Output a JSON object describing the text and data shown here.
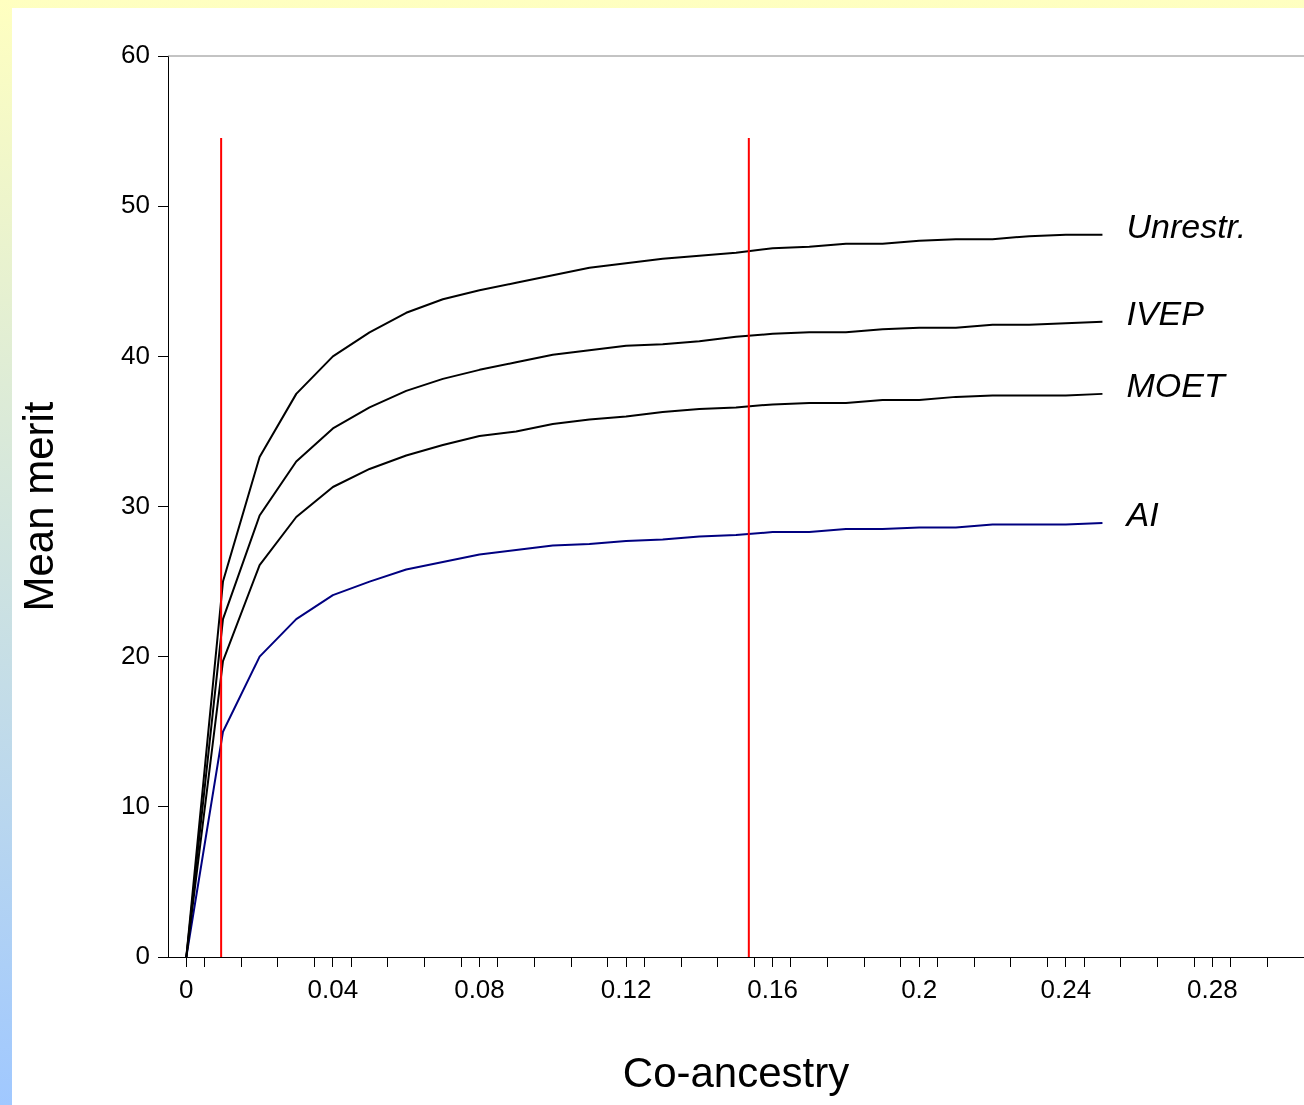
{
  "chart_data": {
    "type": "line",
    "xlabel": "Co-ancestry",
    "ylabel": "Mean merit",
    "x": [
      0,
      0.01,
      0.02,
      0.03,
      0.04,
      0.05,
      0.06,
      0.07,
      0.08,
      0.09,
      0.1,
      0.11,
      0.12,
      0.13,
      0.14,
      0.15,
      0.16,
      0.17,
      0.18,
      0.19,
      0.2,
      0.21,
      0.22,
      0.23,
      0.24,
      0.25
    ],
    "series": [
      {
        "name": "Unrestr.",
        "color": "#000000",
        "values": [
          0,
          25,
          33.3,
          37.5,
          40,
          41.6,
          42.9,
          43.8,
          44.4,
          44.9,
          45.4,
          45.9,
          46.2,
          46.5,
          46.7,
          46.9,
          47.2,
          47.3,
          47.5,
          47.5,
          47.7,
          47.8,
          47.8,
          48,
          48.1,
          48.1
        ]
      },
      {
        "name": "IVEP",
        "color": "#000000",
        "values": [
          0,
          22.5,
          29.4,
          33,
          35.2,
          36.6,
          37.7,
          38.5,
          39.1,
          39.6,
          40.1,
          40.4,
          40.7,
          40.8,
          41,
          41.3,
          41.5,
          41.6,
          41.6,
          41.8,
          41.9,
          41.9,
          42.1,
          42.1,
          42.2,
          42.3
        ]
      },
      {
        "name": "MOET",
        "color": "#000000",
        "values": [
          0,
          19.7,
          26.1,
          29.3,
          31.3,
          32.5,
          33.4,
          34.1,
          34.7,
          35,
          35.5,
          35.8,
          36,
          36.3,
          36.5,
          36.6,
          36.8,
          36.9,
          36.9,
          37.1,
          37.1,
          37.3,
          37.4,
          37.4,
          37.4,
          37.5
        ]
      },
      {
        "name": "AI",
        "color": "#000080",
        "values": [
          0,
          15,
          20,
          22.5,
          24.1,
          25,
          25.8,
          26.3,
          26.8,
          27.1,
          27.4,
          27.5,
          27.7,
          27.8,
          28,
          28.1,
          28.3,
          28.3,
          28.5,
          28.5,
          28.6,
          28.6,
          28.8,
          28.8,
          28.8,
          28.9
        ]
      }
    ],
    "xlim": [
      -0.005,
      0.305
    ],
    "xticks": [
      0,
      0.04,
      0.08,
      0.12,
      0.16,
      0.2,
      0.24,
      0.28,
      {
        "value": 0.005,
        "label": null
      },
      {
        "value": 0.015,
        "label": null
      },
      {
        "value": 0.025,
        "label": null
      },
      {
        "value": 0.035,
        "label": null
      },
      {
        "value": 0.045,
        "label": null
      },
      {
        "value": 0.055,
        "label": null
      },
      {
        "value": 0.065,
        "label": null
      },
      {
        "value": 0.075,
        "label": null
      },
      {
        "value": 0.085,
        "label": null
      },
      {
        "value": 0.095,
        "label": null
      },
      {
        "value": 0.105,
        "label": null
      },
      {
        "value": 0.115,
        "label": null
      },
      {
        "value": 0.125,
        "label": null
      },
      {
        "value": 0.135,
        "label": null
      },
      {
        "value": 0.145,
        "label": null
      },
      {
        "value": 0.155,
        "label": null
      },
      {
        "value": 0.165,
        "label": null
      },
      {
        "value": 0.175,
        "label": null
      },
      {
        "value": 0.185,
        "label": null
      },
      {
        "value": 0.195,
        "label": null
      },
      {
        "value": 0.205,
        "label": null
      },
      {
        "value": 0.215,
        "label": null
      },
      {
        "value": 0.225,
        "label": null
      },
      {
        "value": 0.235,
        "label": null
      },
      {
        "value": 0.245,
        "label": null
      },
      {
        "value": 0.255,
        "label": null
      },
      {
        "value": 0.265,
        "label": null
      },
      {
        "value": 0.275,
        "label": null
      },
      {
        "value": 0.285,
        "label": null
      },
      {
        "value": 0.295,
        "label": null
      }
    ],
    "ylim": [
      0,
      60
    ],
    "yticks": [
      0,
      10,
      20,
      30,
      40,
      50,
      60
    ],
    "ref_lines": [
      {
        "axis": "x",
        "value": 0.0095,
        "color": "#ff0000"
      },
      {
        "axis": "x",
        "value": 0.1535,
        "color": "#ff0000"
      }
    ]
  }
}
